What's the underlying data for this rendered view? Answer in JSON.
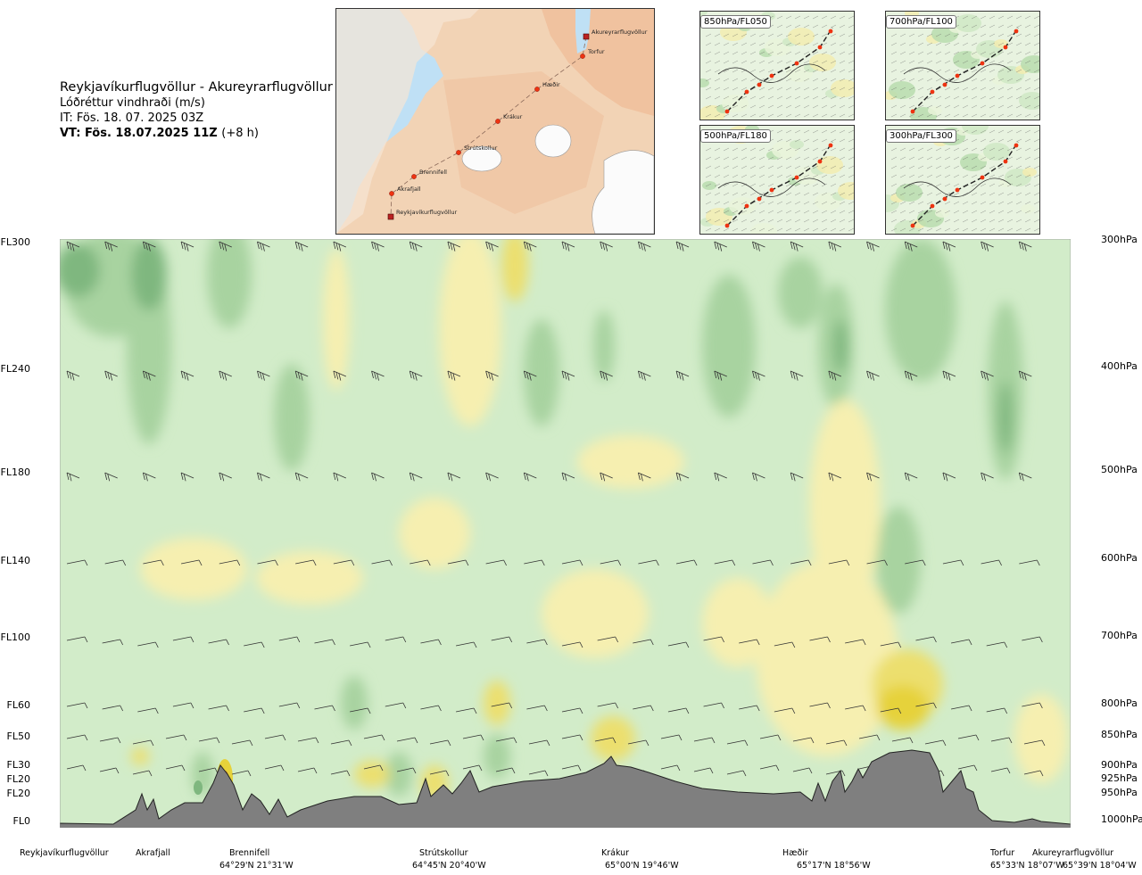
{
  "header": {
    "route": "Reykjavíkurflugvöllur - Akureyrarflugvöllur",
    "variable": "Lóðréttur vindhraði (m/s)",
    "issue_time": "IT: Fös. 18. 07. 2025 03Z",
    "valid_time": "VT: Fös. 18.07.2025 11Z",
    "lead_time": "(+8 h)"
  },
  "map": {
    "points": [
      {
        "name": "Akureyrarflugvöllur",
        "kind": "airport"
      },
      {
        "name": "Torfur",
        "kind": "waypoint"
      },
      {
        "name": "Hæðir",
        "kind": "waypoint"
      },
      {
        "name": "Krákur",
        "kind": "waypoint"
      },
      {
        "name": "Strútskollur",
        "kind": "waypoint"
      },
      {
        "name": "Brennifell",
        "kind": "waypoint"
      },
      {
        "name": "Akrafjall",
        "kind": "waypoint"
      },
      {
        "name": "Reykjavíkurflugvöllur",
        "kind": "airport"
      }
    ]
  },
  "level_panels": [
    "850hPa/FL050",
    "700hPa/FL100",
    "500hPa/FL180",
    "300hPa/FL300"
  ],
  "chart_data": {
    "type": "heatmap",
    "title": "Lóðréttur vindhraði (m/s)",
    "xlabel": "",
    "ylabel": "",
    "left_axis_ticks": [
      "FL300",
      "FL240",
      "FL180",
      "FL140",
      "FL100",
      "FL60",
      "FL50",
      "FL30",
      "FL20",
      "FL20",
      "FL0"
    ],
    "right_axis_ticks": [
      "300hPa",
      "400hPa",
      "500hPa",
      "600hPa",
      "700hPa",
      "800hPa",
      "850hPa",
      "900hPa",
      "925hPa",
      "950hPa",
      "1000hPa"
    ],
    "pressure_hpa": [
      300,
      400,
      500,
      600,
      700,
      800,
      850,
      900,
      925,
      950,
      1000
    ],
    "locations": [
      {
        "name": "Reykjavíkurflugvöllur",
        "coord": ""
      },
      {
        "name": "Akrafjall",
        "coord": ""
      },
      {
        "name": "Brennifell",
        "coord": "64°29'N 21°31'W"
      },
      {
        "name": "Strútskollur",
        "coord": "64°45'N 20°40'W"
      },
      {
        "name": "Krákur",
        "coord": "65°00'N 19°46'W"
      },
      {
        "name": "Hæðir",
        "coord": "65°17'N 18°56'W"
      },
      {
        "name": "Torfur",
        "coord": "65°33'N 18°07'W"
      },
      {
        "name": "Akureyrarflugvöllur",
        "coord": "65°39'N 18°04'W"
      }
    ],
    "colors": {
      "strong_down": "#7fb77f",
      "moderate_down": "#a8d3a0",
      "weak_down": "#d2ecc9",
      "neutral": "#f3f9ec",
      "weak_up": "#f6efb0",
      "moderate_up": "#ecdf6e",
      "strong_up": "#e6d23a",
      "very_strong_up": "#b3591b",
      "terrain": "#7f7f7f"
    }
  }
}
